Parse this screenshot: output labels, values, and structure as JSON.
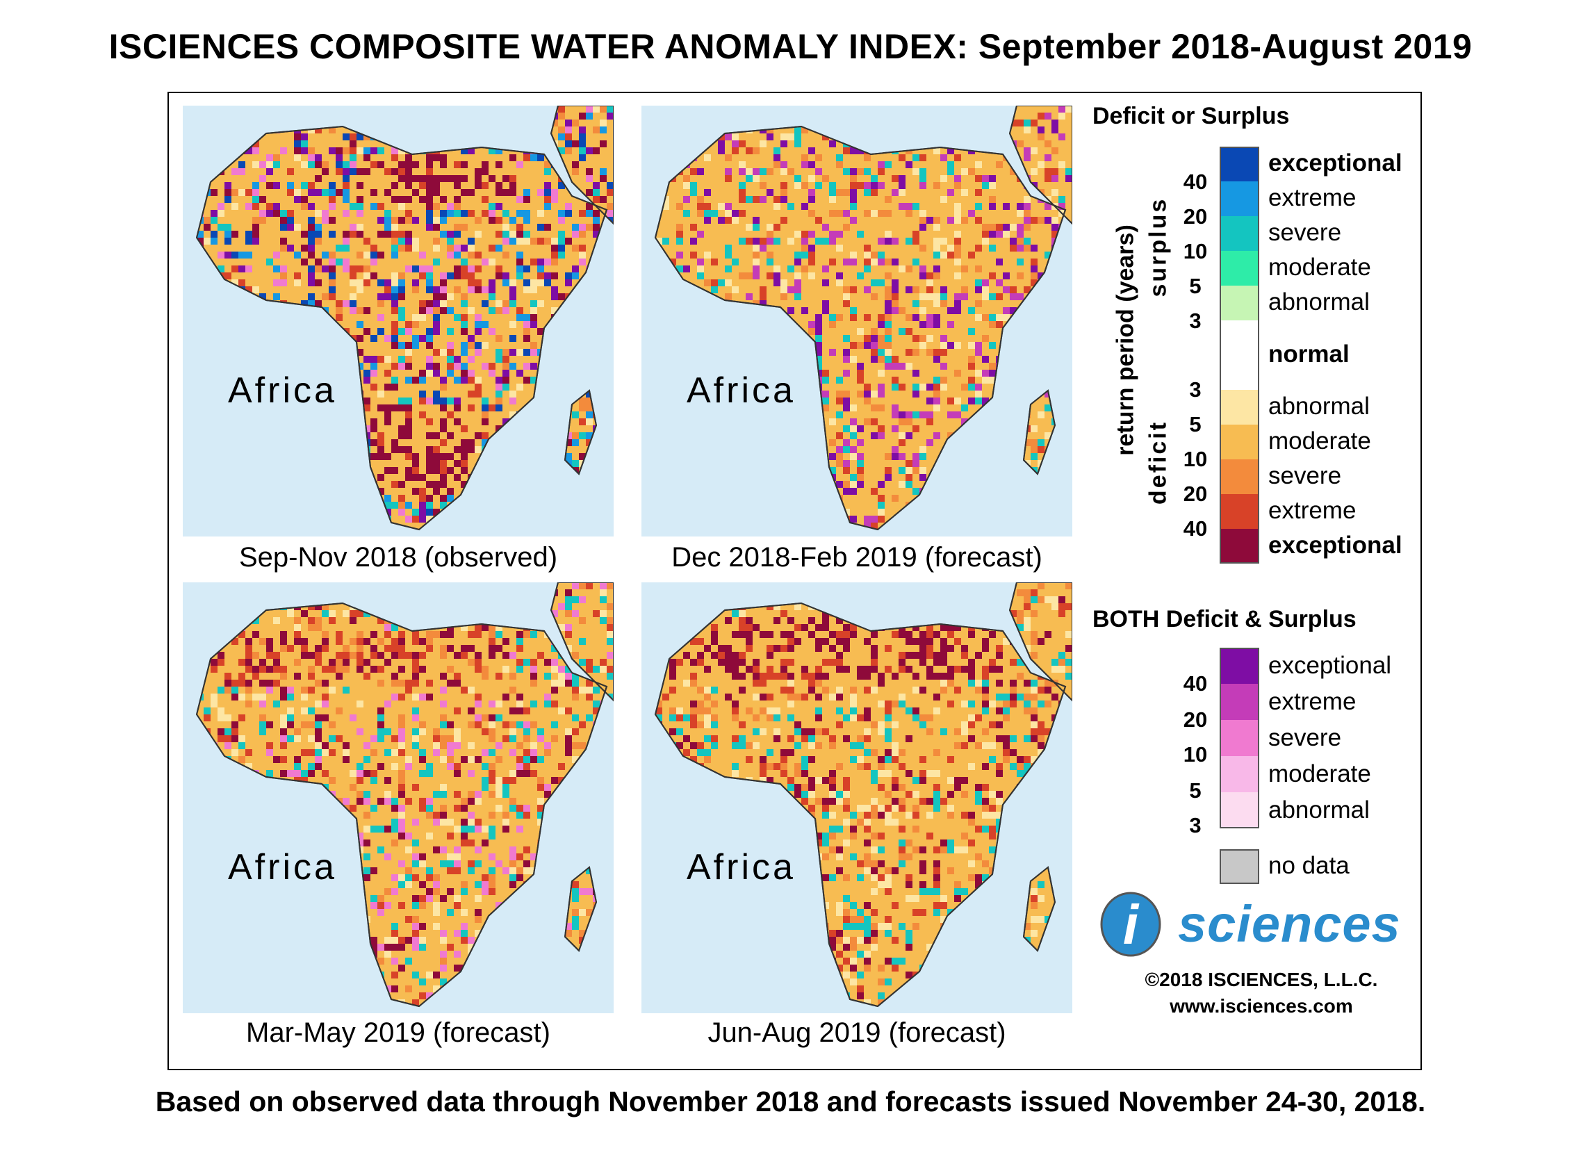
{
  "title": "ISCIENCES COMPOSITE WATER ANOMALY INDEX: September 2018-August 2019",
  "footer": "Based on observed data through November 2018 and forecasts issued November 24-30, 2018.",
  "maps": [
    {
      "caption": "Sep-Nov 2018 (observed)",
      "label": "Africa"
    },
    {
      "caption": "Dec 2018-Feb 2019 (forecast)",
      "label": "Africa"
    },
    {
      "caption": "Mar-May 2019 (forecast)",
      "label": "Africa"
    },
    {
      "caption": "Jun-Aug 2019 (forecast)",
      "label": "Africa"
    }
  ],
  "legend": {
    "heading": "Deficit or Surplus",
    "axis_label": "return period (years)",
    "surplus_label": "surplus",
    "deficit_label": "deficit",
    "surplus_classes": [
      {
        "label": "exceptional",
        "color": "#0a48b4"
      },
      {
        "label": "extreme",
        "color": "#1698e2"
      },
      {
        "label": "severe",
        "color": "#14c5c0"
      },
      {
        "label": "moderate",
        "color": "#2eeca8"
      },
      {
        "label": "abnormal",
        "color": "#c6f5b4"
      }
    ],
    "normal": {
      "label": "normal",
      "color": "#ffffff"
    },
    "deficit_classes": [
      {
        "label": "abnormal",
        "color": "#fde6a4"
      },
      {
        "label": "moderate",
        "color": "#f7bc52"
      },
      {
        "label": "severe",
        "color": "#f38b3c"
      },
      {
        "label": "extreme",
        "color": "#d84228"
      },
      {
        "label": "exceptional",
        "color": "#8e0a3a"
      }
    ],
    "surplus_ticks": [
      "40",
      "20",
      "10",
      "5",
      "3"
    ],
    "deficit_ticks": [
      "3",
      "5",
      "10",
      "20",
      "40"
    ],
    "both_heading": "BOTH Deficit & Surplus",
    "both_classes": [
      {
        "label": "exceptional",
        "color": "#7e0da4"
      },
      {
        "label": "extreme",
        "color": "#c43cb8"
      },
      {
        "label": "severe",
        "color": "#f07ad0"
      },
      {
        "label": "moderate",
        "color": "#f8b8e8"
      },
      {
        "label": "abnormal",
        "color": "#fcdcf0"
      }
    ],
    "both_ticks": [
      "40",
      "20",
      "10",
      "5",
      "3"
    ],
    "no_data": {
      "label": "no data",
      "color": "#c8c8c8"
    }
  },
  "logo": {
    "i": "i",
    "text": "sciences"
  },
  "copyright": "©2018 ISCIENCES, L.L.C.",
  "website": "www.isciences.com"
}
